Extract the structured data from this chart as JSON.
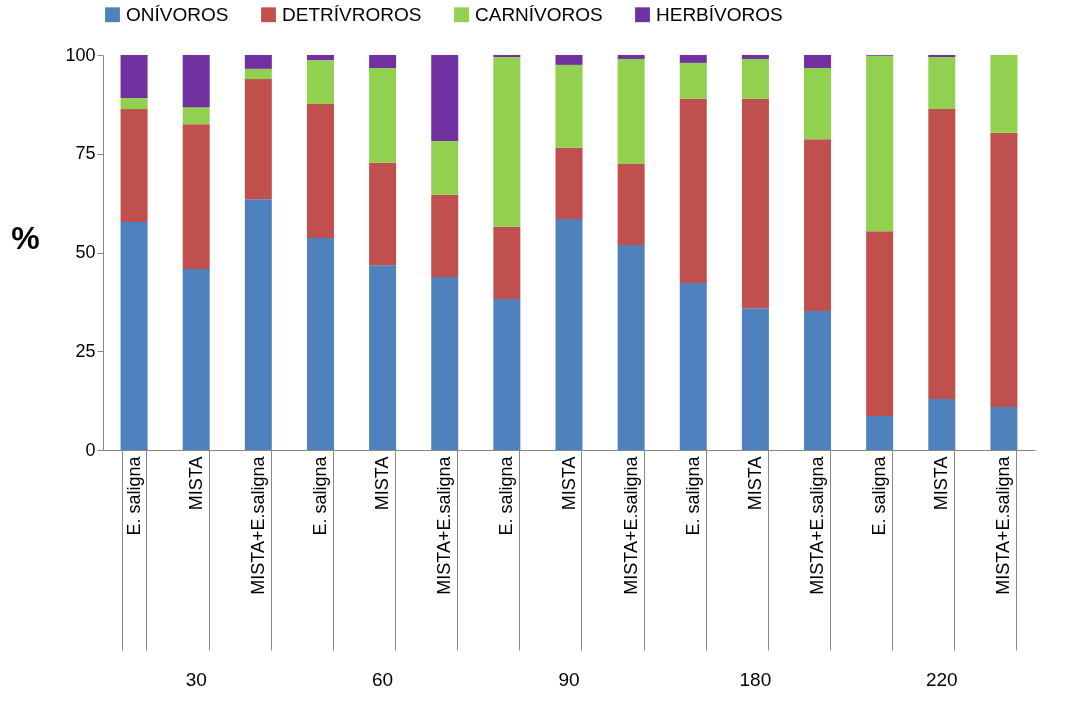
{
  "chart_data": {
    "type": "bar",
    "stacked": true,
    "ylabel": "%",
    "categories": [
      "E. saligna",
      "MISTA",
      "MISTA+E.saligna",
      "E. saligna",
      "MISTA",
      "MISTA+E.saligna",
      "E. saligna",
      "MISTA",
      "MISTA+E.saligna",
      "E. saligna",
      "MISTA",
      "MISTA+E.saligna",
      "E. saligna",
      "MISTA",
      "MISTA+E.saligna"
    ],
    "series": [
      {
        "name": "ONÍVOROS",
        "color": "#4f81bd",
        "values": [
          57.7,
          45.8,
          63.5,
          53.7,
          46.8,
          43.8,
          38.2,
          58.5,
          51.9,
          42.3,
          35.9,
          35.2,
          8.6,
          12.9,
          10.9
        ]
      },
      {
        "name": "DETRÍVROROS",
        "color": "#c0504d",
        "values": [
          28.6,
          36.7,
          30.4,
          33.9,
          25.9,
          20.8,
          18.3,
          18.0,
          20.5,
          46.6,
          53.0,
          43.5,
          46.8,
          73.4,
          69.4
        ]
      },
      {
        "name": "CARNÍVOROS",
        "color": "#92d050",
        "values": [
          2.8,
          4.3,
          2.6,
          11.1,
          24.0,
          13.6,
          43.0,
          21.0,
          26.6,
          9.1,
          10.1,
          18.0,
          44.4,
          13.2,
          19.7
        ]
      },
      {
        "name": "HERBÍVOROS",
        "color": "#7030a0",
        "values": [
          10.9,
          13.2,
          3.5,
          1.3,
          3.3,
          21.8,
          0.5,
          2.5,
          1.0,
          2.0,
          1.0,
          3.3,
          0.2,
          0.5,
          0
        ]
      }
    ],
    "ylim": [
      0,
      100
    ],
    "yticks": [
      0,
      25,
      50,
      75,
      100
    ],
    "grid": false,
    "legend": "top",
    "annotations": [
      "30",
      "60",
      "90",
      "180",
      "220"
    ]
  }
}
